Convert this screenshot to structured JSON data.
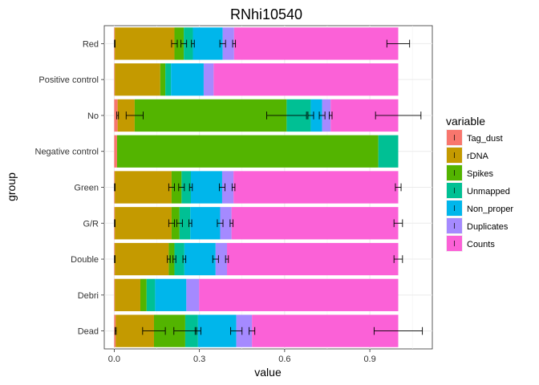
{
  "chart_data": {
    "type": "bar",
    "orientation": "horizontal",
    "stacked": true,
    "title": "RNhi10540",
    "xlabel": "value",
    "ylabel": "group",
    "xlim": [
      -0.035,
      1.12
    ],
    "xticks": [
      0.0,
      0.3,
      0.6,
      0.9
    ],
    "xtick_labels": [
      "0.0",
      "0.3",
      "0.6",
      "0.9"
    ],
    "grid": true,
    "legend": {
      "title": "variable",
      "position": "right"
    },
    "categories": [
      "Red",
      "Positive control",
      "No",
      "Negative control",
      "Green",
      "G/R",
      "Double",
      "Debri",
      "Dead"
    ],
    "series": [
      {
        "name": "Tag_dust",
        "color": "#F8766D",
        "values": [
          0.002,
          0.002,
          0.012,
          0.01,
          0.002,
          0.002,
          0.002,
          0.002,
          0.005
        ],
        "errors": [
          0.001,
          null,
          0.003,
          null,
          0.001,
          0.001,
          0.001,
          null,
          0.002
        ]
      },
      {
        "name": "rDNA",
        "color": "#C49A00",
        "values": [
          0.21,
          0.16,
          0.06,
          0.0,
          0.2,
          0.2,
          0.19,
          0.09,
          0.135
        ],
        "errors": [
          0.01,
          null,
          0.03,
          null,
          0.01,
          0.01,
          0.005,
          null,
          0.04
        ]
      },
      {
        "name": "Spikes",
        "color": "#53B400",
        "values": [
          0.033,
          0.018,
          0.535,
          0.92,
          0.035,
          0.028,
          0.02,
          0.022,
          0.11
        ],
        "errors": [
          0.01,
          null,
          0.07,
          null,
          0.01,
          0.01,
          0.005,
          null,
          0.04
        ]
      },
      {
        "name": "Unmapped",
        "color": "#00C094",
        "values": [
          0.032,
          0.02,
          0.085,
          0.07,
          0.033,
          0.038,
          0.035,
          0.03,
          0.045
        ],
        "errors": [
          0.005,
          null,
          0.01,
          null,
          0.005,
          0.005,
          0.005,
          null,
          0.01
        ]
      },
      {
        "name": "Non_proper",
        "color": "#00B6EB",
        "values": [
          0.105,
          0.115,
          0.04,
          0.0,
          0.11,
          0.105,
          0.11,
          0.11,
          0.135
        ],
        "errors": [
          0.01,
          null,
          0.01,
          null,
          0.01,
          0.01,
          0.01,
          null,
          0.02
        ]
      },
      {
        "name": "Duplicates",
        "color": "#A58AFF",
        "values": [
          0.04,
          0.035,
          0.03,
          0.0,
          0.04,
          0.04,
          0.04,
          0.045,
          0.055
        ],
        "errors": [
          0.005,
          null,
          0.005,
          null,
          0.005,
          0.005,
          0.005,
          null,
          0.01
        ]
      },
      {
        "name": "Counts",
        "color": "#FB61D7",
        "values": [
          0.578,
          0.65,
          0.238,
          0.0,
          0.58,
          0.587,
          0.603,
          0.701,
          0.515
        ],
        "errors": [
          0.04,
          null,
          0.08,
          null,
          0.01,
          0.015,
          0.015,
          null,
          0.085
        ]
      }
    ]
  }
}
